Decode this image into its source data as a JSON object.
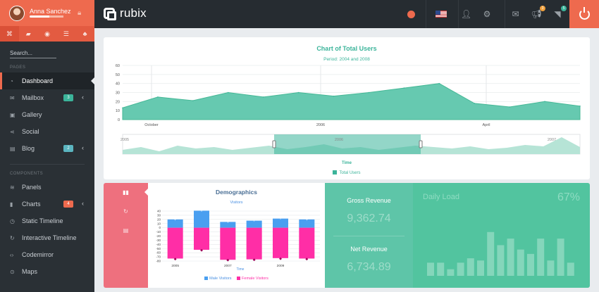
{
  "user": {
    "name": "Anna Sanchez",
    "progress": 0.58
  },
  "search": {
    "placeholder": "Search..."
  },
  "sidebar": {
    "section_pages": "PAGES",
    "section_components": "COMPONENTS",
    "pages": [
      {
        "label": "Dashboard",
        "icon": "gauge-icon",
        "glyph": "◔",
        "active": true
      },
      {
        "label": "Mailbox",
        "icon": "mail-icon",
        "glyph": "✉",
        "badge": "3",
        "badge_color": "teal",
        "chevron": true
      },
      {
        "label": "Gallery",
        "icon": "image-icon",
        "glyph": "▣"
      },
      {
        "label": "Social",
        "icon": "share-icon",
        "glyph": "⋖"
      },
      {
        "label": "Blog",
        "icon": "blog-icon",
        "glyph": "▤",
        "badge": "2",
        "badge_color": "blue",
        "chevron": true
      }
    ],
    "components": [
      {
        "label": "Panels",
        "icon": "layers-icon",
        "glyph": "≋"
      },
      {
        "label": "Charts",
        "icon": "bar-chart-icon",
        "glyph": "▮",
        "badge": "4",
        "badge_color": "orange",
        "chevron": true
      },
      {
        "label": "Static Timeline",
        "icon": "clock-icon",
        "glyph": "◷"
      },
      {
        "label": "Interactive Timeline",
        "icon": "history-icon",
        "glyph": "↻"
      },
      {
        "label": "Codemirror",
        "icon": "code-icon",
        "glyph": "‹›"
      },
      {
        "label": "Maps",
        "icon": "map-pin-icon",
        "glyph": "⊙"
      }
    ]
  },
  "header": {
    "brand": "rubix",
    "notifications": {
      "megaphone": "3",
      "rss": "5"
    }
  },
  "colors": {
    "accent": "#ee6a4e",
    "teal": "#3bb49a",
    "male": "#4a9ff0",
    "female": "#ff2ea6"
  },
  "main_chart": {
    "title": "Chart of Total Users",
    "subtitle": "Period: 2004 and 2008",
    "legend": "Total Users",
    "nav_label": "Time",
    "nav_ticks": [
      "2005",
      "2006",
      "2007"
    ],
    "chart_data": {
      "type": "area",
      "title": "Chart of Total Users",
      "subtitle": "Period: 2004 and 2008",
      "series": [
        {
          "name": "Total Users",
          "values": [
            13,
            25,
            21,
            30,
            25,
            30,
            26,
            30,
            35,
            40,
            18,
            14,
            20,
            15
          ]
        }
      ],
      "ylim": [
        0,
        60
      ],
      "yticks": [
        0,
        10,
        20,
        30,
        40,
        50,
        60
      ],
      "x_tick_labels": [
        "October",
        "2006",
        "April"
      ],
      "xlabel": "Time",
      "grid": true
    }
  },
  "demographics": {
    "title": "Demographics",
    "subtitle": "Visitors",
    "legend_male": "Male Visitors",
    "legend_female": "Female Visitors",
    "chart_data": {
      "type": "bar",
      "title": "Demographics",
      "subtitle": "Visitors",
      "xlabel": "Time",
      "categories": [
        "2005",
        "2006",
        "2007",
        "2008",
        "2009",
        "2010"
      ],
      "x_tick_labels": [
        "2005",
        "2007",
        "2009"
      ],
      "series": [
        {
          "name": "Male Visitors",
          "values": [
            20,
            41,
            14,
            17,
            22,
            20
          ]
        },
        {
          "name": "Female Visitors",
          "values": [
            -74,
            -53,
            -77,
            -76,
            -73,
            -74
          ]
        }
      ],
      "ylim": [
        -80,
        40
      ],
      "yticks": [
        40,
        30,
        20,
        10,
        0,
        -10,
        -20,
        -30,
        -40,
        -50,
        -60,
        -70,
        -80
      ]
    }
  },
  "revenue": {
    "gross_label": "Gross Revenue",
    "gross_value": "9,362.74",
    "net_label": "Net Revenue",
    "net_value": "6,734.89"
  },
  "daily_load": {
    "title": "Daily Load",
    "percent": "67%",
    "chart_data": {
      "type": "bar",
      "values": [
        12,
        12,
        6,
        12,
        16,
        14,
        40,
        28,
        34,
        24,
        20,
        34,
        14,
        34,
        12
      ]
    }
  }
}
